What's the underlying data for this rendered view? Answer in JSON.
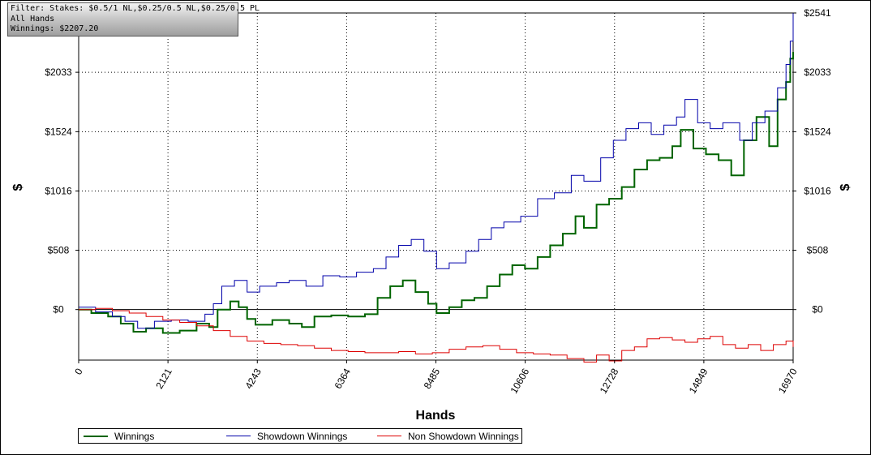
{
  "filter_box": {
    "line1": "Filter: Stakes: $0.5/1 NL,$0.25/0.5 NL,$0.25/0.5 PL",
    "line2": "All Hands",
    "line3": "Winnings: $2207.20"
  },
  "legend": {
    "winnings": "Winnings",
    "showdown": "Showdown Winnings",
    "nonshowdown": "Non Showdown Winnings"
  },
  "chart_data": {
    "type": "line",
    "xlabel": "Hands",
    "ylabel": "$",
    "xlim": [
      0,
      16970
    ],
    "ylim": [
      -433,
      2541
    ],
    "x_ticks": [
      0,
      2121,
      4243,
      6364,
      8485,
      10606,
      12728,
      14849,
      16970
    ],
    "x_tick_labels": [
      "0",
      "2121",
      "4243",
      "6364",
      "8485",
      "10606",
      "12728",
      "14849",
      "16970"
    ],
    "y_ticks": [
      0,
      508,
      1016,
      1524,
      2033,
      2541
    ],
    "y_tick_labels": [
      "$0",
      "$508",
      "$1016",
      "$1524",
      "$2033",
      "$2541"
    ],
    "grid": true,
    "legend_position": "bottom-left",
    "colors": {
      "winnings": "#006400",
      "showdown": "#0000aa",
      "nonshowdown": "#dd0000"
    },
    "series": [
      {
        "name": "Winnings",
        "key": "winnings",
        "x": [
          0,
          300,
          700,
          1000,
          1300,
          1600,
          2000,
          2400,
          2800,
          3100,
          3300,
          3600,
          3800,
          4000,
          4200,
          4600,
          5000,
          5300,
          5600,
          6000,
          6400,
          6800,
          7100,
          7400,
          7700,
          8000,
          8300,
          8500,
          8800,
          9100,
          9400,
          9700,
          10000,
          10300,
          10600,
          10900,
          11200,
          11500,
          11800,
          12000,
          12300,
          12600,
          12900,
          13200,
          13500,
          13800,
          14100,
          14300,
          14600,
          14900,
          15200,
          15500,
          15800,
          16100,
          16400,
          16600,
          16800,
          16900,
          16970
        ],
        "y": [
          0,
          -30,
          -60,
          -120,
          -190,
          -160,
          -200,
          -180,
          -120,
          -150,
          0,
          70,
          20,
          -80,
          -130,
          -90,
          -120,
          -150,
          -60,
          -50,
          -60,
          -40,
          100,
          200,
          250,
          150,
          50,
          -30,
          20,
          80,
          100,
          200,
          300,
          380,
          350,
          450,
          550,
          650,
          800,
          700,
          900,
          950,
          1050,
          1200,
          1280,
          1300,
          1400,
          1540,
          1380,
          1330,
          1280,
          1150,
          1450,
          1650,
          1400,
          1800,
          1950,
          2150,
          2207
        ]
      },
      {
        "name": "Showdown Winnings",
        "key": "showdown",
        "x": [
          0,
          400,
          800,
          1100,
          1400,
          1800,
          2200,
          2600,
          3000,
          3200,
          3400,
          3700,
          4000,
          4300,
          4700,
          5000,
          5400,
          5800,
          6200,
          6600,
          7000,
          7300,
          7600,
          7900,
          8200,
          8500,
          8800,
          9200,
          9500,
          9800,
          10100,
          10500,
          10900,
          11300,
          11700,
          12000,
          12400,
          12700,
          13000,
          13300,
          13600,
          13900,
          14200,
          14400,
          14700,
          15000,
          15300,
          15700,
          16000,
          16300,
          16600,
          16800,
          16900,
          16970
        ],
        "y": [
          20,
          -20,
          -60,
          -100,
          -160,
          -100,
          -90,
          -100,
          -40,
          50,
          200,
          250,
          150,
          200,
          230,
          250,
          200,
          290,
          280,
          320,
          350,
          450,
          550,
          600,
          500,
          350,
          400,
          500,
          600,
          700,
          750,
          800,
          950,
          1000,
          1150,
          1100,
          1300,
          1450,
          1550,
          1600,
          1500,
          1580,
          1650,
          1800,
          1600,
          1550,
          1600,
          1450,
          1600,
          1700,
          1900,
          2100,
          2300,
          2541
        ]
      },
      {
        "name": "Non Showdown Winnings",
        "key": "nonshowdown",
        "x": [
          0,
          400,
          800,
          1200,
          1600,
          2000,
          2400,
          2800,
          3200,
          3600,
          4000,
          4400,
          4800,
          5200,
          5600,
          6000,
          6400,
          6800,
          7200,
          7600,
          8000,
          8400,
          8800,
          9200,
          9600,
          10000,
          10400,
          10800,
          11200,
          11600,
          12000,
          12300,
          12600,
          12900,
          13200,
          13500,
          13800,
          14100,
          14400,
          14700,
          15000,
          15300,
          15600,
          15900,
          16200,
          16500,
          16800,
          16970
        ],
        "y": [
          0,
          10,
          -10,
          -30,
          -60,
          -90,
          -110,
          -140,
          -180,
          -230,
          -270,
          -290,
          -300,
          -310,
          -330,
          -350,
          -360,
          -370,
          -370,
          -360,
          -380,
          -370,
          -340,
          -320,
          -310,
          -340,
          -370,
          -380,
          -390,
          -420,
          -450,
          -390,
          -440,
          -350,
          -320,
          -250,
          -240,
          -260,
          -280,
          -250,
          -230,
          -300,
          -330,
          -300,
          -350,
          -300,
          -270,
          -320
        ]
      }
    ]
  }
}
